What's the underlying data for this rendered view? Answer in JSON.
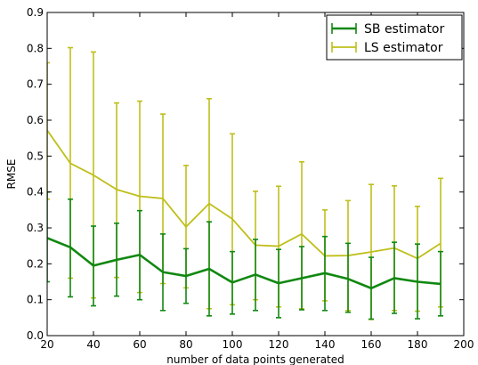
{
  "chart_data": {
    "type": "line",
    "xlabel": "number of data points generated",
    "ylabel": "RMSE",
    "xlim": [
      20,
      200
    ],
    "ylim": [
      0.0,
      0.9
    ],
    "x_ticks": [
      20,
      40,
      60,
      80,
      100,
      120,
      140,
      160,
      180,
      200
    ],
    "x_tick_labels": [
      "20",
      "40",
      "60",
      "80",
      "100",
      "120",
      "140",
      "160",
      "180",
      "200"
    ],
    "y_ticks": [
      0.0,
      0.1,
      0.2,
      0.3,
      0.4,
      0.5,
      0.6,
      0.7,
      0.8,
      0.9
    ],
    "y_tick_labels": [
      "0.0",
      "0.1",
      "0.2",
      "0.3",
      "0.4",
      "0.5",
      "0.6",
      "0.7",
      "0.8",
      "0.9"
    ],
    "grid": false,
    "legend_position": "top-right",
    "x": [
      20,
      30,
      40,
      50,
      60,
      70,
      80,
      90,
      100,
      110,
      120,
      130,
      140,
      150,
      160,
      170,
      180,
      190
    ],
    "series": [
      {
        "name": "SB estimator",
        "color": "#118811",
        "values": [
          0.272,
          0.246,
          0.195,
          0.211,
          0.225,
          0.177,
          0.166,
          0.186,
          0.148,
          0.17,
          0.146,
          0.16,
          0.174,
          0.158,
          0.132,
          0.16,
          0.15,
          0.144
        ],
        "lower": [
          0.15,
          0.108,
          0.083,
          0.11,
          0.1,
          0.07,
          0.09,
          0.055,
          0.06,
          0.07,
          0.05,
          0.072,
          0.07,
          0.065,
          0.046,
          0.062,
          0.047,
          0.055
        ],
        "upper": [
          0.4,
          0.38,
          0.305,
          0.313,
          0.348,
          0.283,
          0.242,
          0.317,
          0.234,
          0.268,
          0.24,
          0.248,
          0.276,
          0.257,
          0.218,
          0.26,
          0.255,
          0.234
        ]
      },
      {
        "name": "LS estimator",
        "color": "#bfbf1b",
        "values": [
          0.572,
          0.48,
          0.447,
          0.407,
          0.388,
          0.382,
          0.303,
          0.368,
          0.325,
          0.252,
          0.249,
          0.283,
          0.222,
          0.223,
          0.233,
          0.244,
          0.215,
          0.257
        ],
        "lower": [
          0.38,
          0.16,
          0.105,
          0.162,
          0.12,
          0.145,
          0.133,
          0.075,
          0.086,
          0.1,
          0.08,
          0.075,
          0.097,
          0.07,
          0.045,
          0.07,
          0.068,
          0.08
        ],
        "upper": [
          0.76,
          0.802,
          0.79,
          0.648,
          0.653,
          0.617,
          0.474,
          0.66,
          0.562,
          0.402,
          0.416,
          0.484,
          0.35,
          0.376,
          0.421,
          0.417,
          0.36,
          0.438
        ]
      }
    ]
  }
}
